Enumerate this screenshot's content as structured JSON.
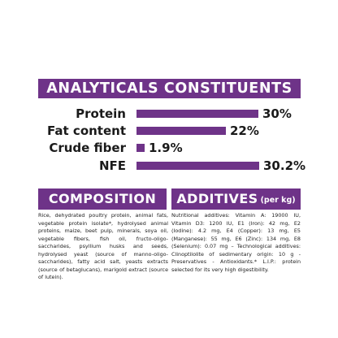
{
  "analyticals": {
    "title": "ANALYTICALS CONSTITUENTS",
    "rows": [
      {
        "label": "Protein",
        "value": "30%",
        "fraction": 0.3
      },
      {
        "label": "Fat content",
        "value": "22%",
        "fraction": 0.22
      },
      {
        "label": "Crude fiber",
        "value": "1.9%",
        "fraction": 0.019
      },
      {
        "label": "NFE",
        "value": "30.2%",
        "fraction": 0.302
      }
    ]
  },
  "composition": {
    "title": "COMPOSITION",
    "text": "Rice, dehydrated poultry protein, animal fats, vegetable protein isolate*, hydrolysed animal proteins, maize, beet pulp, minerals, soya oil, vegetable fibers, fish oil, fructo-oligo-saccharides, psyllium husks and seeds, hydrolysed yeast (source of manno-oligo-saccharides), fatty acid salt, yeasts extracts (source of betaglucans), marigold extract (source of lutein)."
  },
  "additives": {
    "title": "ADDITIVES",
    "title_suffix": "(per kg)",
    "text": "Nutritional additives: Vitamin A: 19000 IU, Vitamin D3: 1200 IU, E1 (Iron): 42 mg, E2 (Iodine): 4.2 mg, E4 (Copper): 13 mg, E5 (Manganese): 55 mg, E6 (Zinc): 134 mg, E8 (Selenium): 0.07 mg – Technological additives: Clinoptilolite of sedimentary origin: 10 g - Preservatives - Antioxidants.* L.I.P.: protein selected for its very high digestibility."
  },
  "colors": {
    "accent": "#6e3388",
    "text": "#1a1a1a"
  }
}
